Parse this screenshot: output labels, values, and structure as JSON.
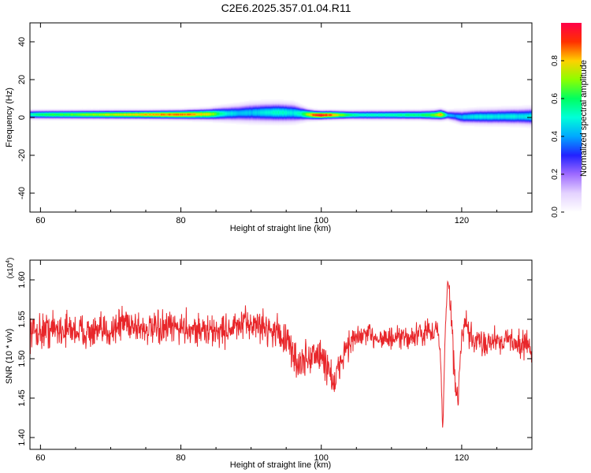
{
  "figure": {
    "title": "C2E6.2025.357.01.04.R11"
  },
  "colors": {
    "snr_line": "#e8262a",
    "axis": "#000000",
    "background": "#ffffff",
    "colormap": [
      "#ffffff",
      "#e4d2ff",
      "#9e6bff",
      "#2222ff",
      "#00a8ff",
      "#00ffd8",
      "#00ff60",
      "#8cff00",
      "#ffd000",
      "#ff3000",
      "#ff0048"
    ]
  },
  "chart_data": [
    {
      "type": "heatmap",
      "name": "spectrogram",
      "xlabel": "Height of straight line (km)",
      "ylabel": "Frequency (Hz)",
      "xlim": [
        58.5,
        130
      ],
      "ylim": [
        -50,
        50
      ],
      "xticks": [
        60,
        80,
        100,
        120
      ],
      "yticks": [
        -40,
        -20,
        0,
        20,
        40
      ],
      "grid": false,
      "colorbar": {
        "label": "Normalized spectral amplitude",
        "range": [
          0,
          1
        ],
        "ticks": [
          0.0,
          0.2,
          0.4,
          0.6,
          0.8
        ]
      },
      "band": {
        "x": [
          58.5,
          60,
          65,
          70,
          75,
          80,
          84,
          86,
          88,
          90,
          92,
          94,
          96,
          97,
          98,
          99,
          100,
          101,
          102,
          104,
          106,
          108,
          110,
          112,
          114,
          116,
          117,
          118,
          119,
          120,
          122,
          124,
          126,
          128,
          130
        ],
        "center_hz": [
          1.5,
          1.5,
          1.5,
          1.5,
          1.5,
          1.5,
          1.7,
          2.0,
          2.2,
          2.5,
          2.6,
          2.6,
          2.4,
          2.0,
          1.6,
          1.3,
          1.2,
          1.3,
          1.3,
          1.3,
          1.3,
          1.3,
          1.3,
          1.3,
          1.3,
          1.3,
          1.5,
          1.2,
          0.8,
          0.2,
          0.4,
          0.4,
          0.5,
          0.5,
          0.5
        ],
        "halfwidth_hz": [
          1.5,
          1.5,
          1.5,
          1.5,
          1.5,
          1.6,
          1.9,
          2.4,
          2.8,
          3.2,
          3.3,
          3.3,
          3.2,
          2.6,
          1.9,
          1.6,
          1.5,
          1.5,
          1.5,
          1.5,
          1.6,
          1.6,
          1.6,
          1.6,
          1.6,
          1.7,
          1.8,
          1.6,
          2.0,
          2.3,
          2.5,
          2.6,
          2.7,
          2.8,
          3.0
        ],
        "peak_amplitude": [
          0.55,
          0.62,
          0.7,
          0.78,
          0.85,
          0.92,
          0.8,
          0.55,
          0.45,
          0.45,
          0.5,
          0.55,
          0.5,
          0.55,
          0.75,
          0.95,
          1.0,
          0.95,
          0.85,
          0.6,
          0.55,
          0.55,
          0.55,
          0.6,
          0.6,
          0.7,
          0.9,
          0.45,
          0.4,
          0.45,
          0.5,
          0.5,
          0.5,
          0.5,
          0.5
        ]
      }
    },
    {
      "type": "line",
      "name": "snr",
      "xlabel": "Height of straight line (km)",
      "ylabel": "SNR (10 * v/v)",
      "y_multiplier_label": "(x10",
      "y_multiplier_exp": "4",
      "xlim": [
        58.5,
        130
      ],
      "ylim": [
        1.385,
        1.625
      ],
      "xticks": [
        60,
        80,
        100,
        120
      ],
      "yticks": [
        1.4,
        1.45,
        1.5,
        1.55,
        1.6
      ],
      "ytick_labels": [
        "1.40",
        "1.45",
        "1.50",
        "1.55",
        "1.60"
      ],
      "grid": false,
      "x": [
        58.5,
        60,
        62,
        64,
        66,
        68,
        70,
        72,
        74,
        76,
        78,
        80,
        82,
        84,
        86,
        88,
        90,
        92,
        94,
        95,
        96,
        97,
        98,
        99,
        100,
        101,
        102,
        103,
        104,
        105,
        106,
        108,
        110,
        112,
        114,
        115,
        116,
        116.5,
        117,
        117.3,
        117.6,
        118,
        118.5,
        119,
        119.5,
        120,
        120.5,
        121,
        122,
        124,
        126,
        128,
        130
      ],
      "y": [
        1.535,
        1.535,
        1.538,
        1.537,
        1.535,
        1.532,
        1.536,
        1.548,
        1.54,
        1.536,
        1.538,
        1.54,
        1.538,
        1.534,
        1.536,
        1.54,
        1.545,
        1.54,
        1.533,
        1.522,
        1.505,
        1.492,
        1.5,
        1.506,
        1.502,
        1.49,
        1.465,
        1.505,
        1.52,
        1.525,
        1.53,
        1.528,
        1.524,
        1.526,
        1.53,
        1.535,
        1.53,
        1.545,
        1.5,
        1.405,
        1.52,
        1.6,
        1.56,
        1.47,
        1.45,
        1.525,
        1.545,
        1.53,
        1.52,
        1.522,
        1.525,
        1.52,
        1.515
      ],
      "noise_amplitude": [
        0.018,
        0.02,
        0.02,
        0.018,
        0.018,
        0.018,
        0.018,
        0.02,
        0.018,
        0.017,
        0.018,
        0.018,
        0.018,
        0.017,
        0.018,
        0.018,
        0.017,
        0.017,
        0.018,
        0.02,
        0.022,
        0.022,
        0.02,
        0.02,
        0.02,
        0.022,
        0.022,
        0.02,
        0.016,
        0.014,
        0.013,
        0.013,
        0.013,
        0.013,
        0.013,
        0.013,
        0.012,
        0.01,
        0.006,
        0.006,
        0.006,
        0.008,
        0.015,
        0.016,
        0.016,
        0.016,
        0.016,
        0.015,
        0.015,
        0.015,
        0.015,
        0.015,
        0.015
      ]
    }
  ]
}
